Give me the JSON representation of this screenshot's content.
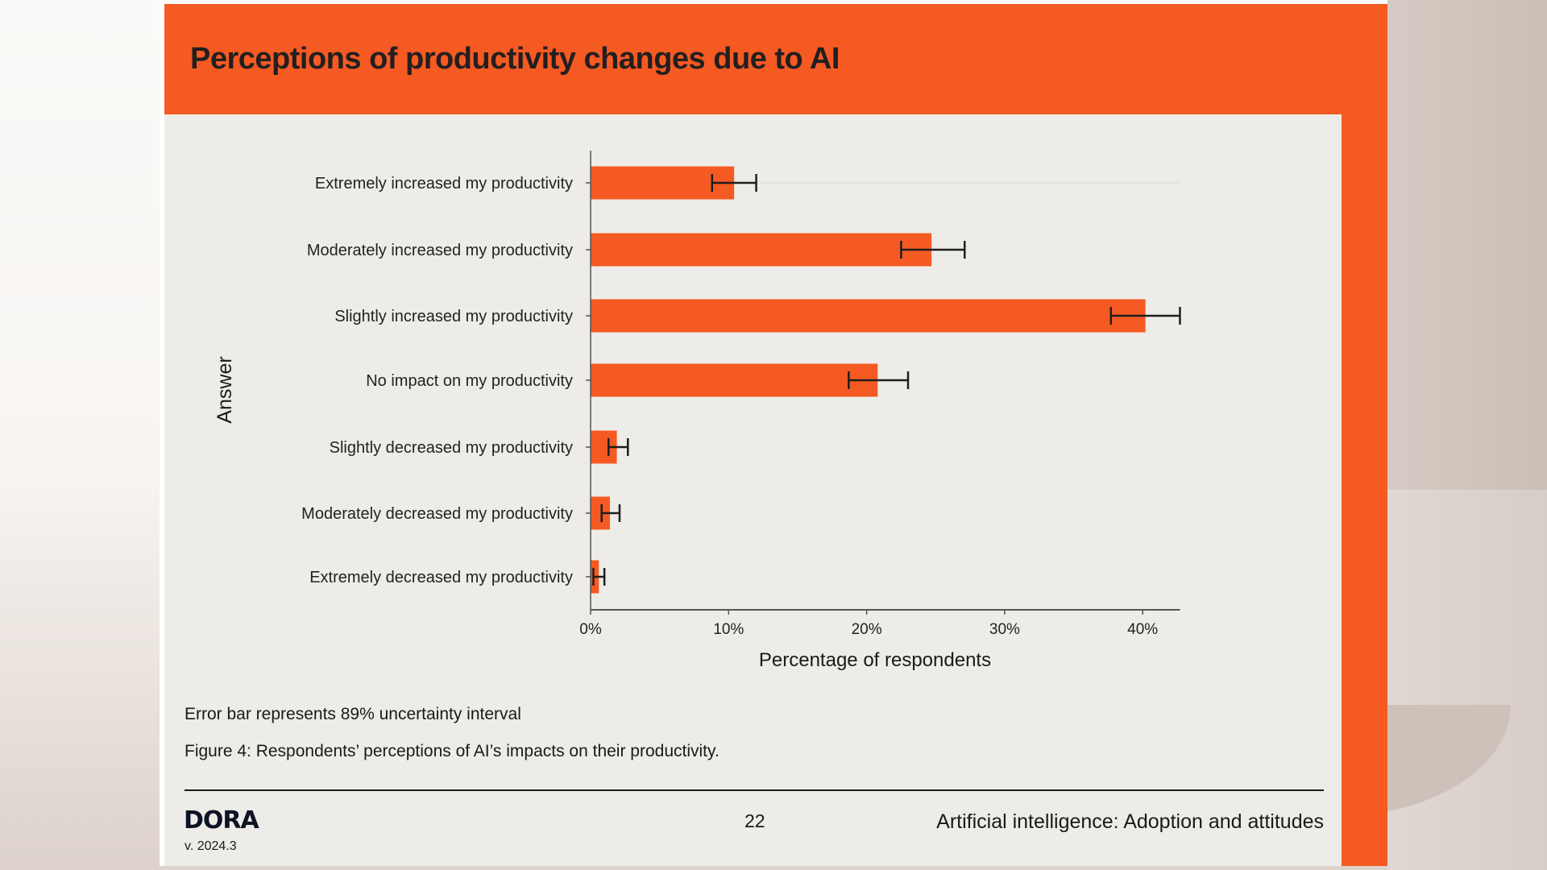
{
  "header": {
    "title": "Perceptions of productivity changes due to AI"
  },
  "colors": {
    "accent": "#f55a22",
    "panel": "#eeece8",
    "text": "#231f20",
    "error_bar": "#1e1e1e",
    "axis": "#555555"
  },
  "chart_data": {
    "type": "bar",
    "orientation": "horizontal",
    "title": "Perceptions of productivity changes due to AI",
    "xlabel": "Percentage of respondents",
    "ylabel": "Answer",
    "xlim": [
      0,
      42.7
    ],
    "xticks": [
      0,
      10,
      20,
      30,
      40
    ],
    "xtick_labels": [
      "0%",
      "10%",
      "20%",
      "30%",
      "40%"
    ],
    "categories": [
      "Extremely increased my productivity",
      "Moderately increased my productivity",
      "Slightly increased my productivity",
      "No impact on my productivity",
      "Slightly decreased my productivity",
      "Moderately decreased my productivity",
      "Extremely decreased my productivity"
    ],
    "values": [
      10.4,
      24.7,
      40.2,
      20.8,
      1.9,
      1.4,
      0.6
    ],
    "error_low": [
      8.8,
      22.5,
      37.7,
      18.7,
      1.3,
      0.8,
      0.2
    ],
    "error_high": [
      12.0,
      27.1,
      42.7,
      23.0,
      2.7,
      2.1,
      1.0
    ],
    "grid": false,
    "legend": "none"
  },
  "notes": {
    "error_bar": "Error bar represents 89% uncertainty interval",
    "caption": "Figure 4: Respondents’ perceptions of AI’s impacts on their productivity."
  },
  "footer": {
    "logo": "DORA",
    "version": "v. 2024.3",
    "page": "22",
    "section": "Artificial intelligence: Adoption and attitudes"
  }
}
